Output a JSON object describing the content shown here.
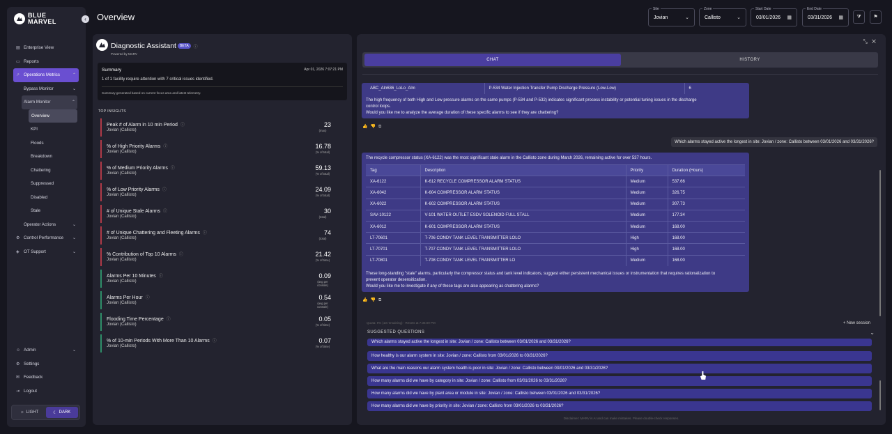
{
  "brand": {
    "name": "BLUE MARVEL"
  },
  "page": {
    "title": "Overview"
  },
  "nav": {
    "enterprise": "Enterprise View",
    "reports": "Reports",
    "operations": "Operations Metrics",
    "bypass": "Bypass Monitor",
    "alarm": "Alarm Monitor",
    "alarm_items": [
      "Overview",
      "KPI",
      "Floods",
      "Breakdown",
      "Chattering",
      "Suppressed",
      "Disabled",
      "Stale"
    ],
    "operator": "Operator Actions",
    "control": "Control Performance",
    "ot": "OT Support",
    "admin": "Admin",
    "settings": "Settings",
    "feedback": "Feedback",
    "logout": "Logout",
    "light": "LIGHT",
    "dark": "DARK"
  },
  "filters": {
    "site": {
      "label": "Site",
      "value": "Jovian"
    },
    "zone": {
      "label": "Zone",
      "value": "Callisto"
    },
    "start": {
      "label": "Start Date",
      "value": "03/01/2026"
    },
    "end": {
      "label": "End Date",
      "value": "03/31/2026"
    }
  },
  "assistant": {
    "title": "Diagnostic Assistant",
    "badge": "BETA",
    "powered": "Powered by MARV",
    "summary_title": "Summary",
    "summary_date": "Apr 01, 2026 7:07:21 PM",
    "summary_body": "1 of 1 facility require attention with 7 critical issues identified.",
    "summary_footer": "Summary generated based on current focus area and latest telemetry.",
    "insights_title": "TOP INSIGHTS",
    "insights": [
      {
        "name": "Peak # of Alarm in 10 min Period",
        "sub": "Jovian (Callisto)",
        "value": "23",
        "unit": "(max)",
        "status": "red"
      },
      {
        "name": "% of High Priority Alarms",
        "sub": "Jovian (Callisto)",
        "value": "16.78",
        "unit": "(% of total)",
        "status": "red"
      },
      {
        "name": "% of Medium Priority Alarms",
        "sub": "Jovian (Callisto)",
        "value": "59.13",
        "unit": "(% of total)",
        "status": "red"
      },
      {
        "name": "% of Low Priority Alarms",
        "sub": "Jovian (Callisto)",
        "value": "24.09",
        "unit": "(% of total)",
        "status": "red"
      },
      {
        "name": "# of Unique Stale Alarms",
        "sub": "Jovian (Callisto)",
        "value": "30",
        "unit": "(total)",
        "status": "red"
      },
      {
        "name": "# of Unique Chattering and Fleeting Alarms",
        "sub": "Jovian (Callisto)",
        "value": "74",
        "unit": "(total)",
        "status": "red"
      },
      {
        "name": "% Contribution of Top 10 Alarms",
        "sub": "Jovian (Callisto)",
        "value": "21.42",
        "unit": "(% of time)",
        "status": "red"
      },
      {
        "name": "Alarms Per 10 Minutes",
        "sub": "Jovian (Callisto)",
        "value": "0.09",
        "unit": "(avg per console)",
        "status": "green"
      },
      {
        "name": "Alarms Per Hour",
        "sub": "Jovian (Callisto)",
        "value": "0.54",
        "unit": "(avg per console)",
        "status": "green"
      },
      {
        "name": "Flooding Time Percentage",
        "sub": "Jovian (Callisto)",
        "value": "0.05",
        "unit": "(% of time)",
        "status": "green"
      },
      {
        "name": "% of 10-min Periods With More Than 10 Alarms",
        "sub": "Jovian (Callisto)",
        "value": "0.07",
        "unit": "(% of time)",
        "status": "green"
      }
    ]
  },
  "chat": {
    "tab_chat": "CHAT",
    "tab_history": "HISTORY",
    "prev_row": [
      "ABC_Aln636_LoLo_Alm",
      "P-534 Water Injection Transfer Pump Discharge Pressure (Low-Low)",
      "6"
    ],
    "prev_text1": "The high frequency of both High and Low pressure alarms on the same pumps (P-534 and P-532) indicates significant process instability or potential tuning issues in the discharge control loops.",
    "prev_text2": "Would you like me to analyze the average duration of these specific alarms to see if they are chattering?",
    "user_msg": "Which alarms stayed active the longest in site: Jovian / zone: Callisto between 03/01/2026 and 03/31/2026?",
    "answer_intro": "The recycle compressor status (XA-6122) was the most significant stale alarm in the Callisto zone during March 2026, remaining active for over 537 hours.",
    "table_headers": [
      "Tag",
      "Description",
      "Priority",
      "Duration (Hours)"
    ],
    "table_rows": [
      [
        "XA-6122",
        "K-612 RECYCLE COMPRESSOR ALARM STATUS",
        "Medium",
        "537.66"
      ],
      [
        "XA-6042",
        "K-604 COMPRESSOR ALARM STATUS",
        "Medium",
        "326.75"
      ],
      [
        "XA-6022",
        "K-602 COMPRESSOR ALARM STATUS",
        "Medium",
        "307.73"
      ],
      [
        "SAV-10122",
        "V-101 WATER OUTLET ESDV SOLENOID FULL STALL",
        "Medium",
        "177.34"
      ],
      [
        "XA-6012",
        "K-601 COMPRESSOR ALARM STATUS",
        "Medium",
        "168.00"
      ],
      [
        "LT-70601",
        "T-706 CONDY TANK LEVEL TRANSMITTER LOLO",
        "High",
        "168.00"
      ],
      [
        "LT-70701",
        "T-707 CONDY TANK LEVEL TRANSMITTER LOLO",
        "High",
        "168.00"
      ],
      [
        "LT-70801",
        "T-708 CONDY TANK LEVEL TRANSMITTER LO",
        "Medium",
        "168.00"
      ]
    ],
    "answer_text1": "These long-standing \"stale\" alarms, particularly the compressor status and tank level indicators, suggest either persistent mechanical issues or instrumentation that requires rationalization to prevent operator desensitization.",
    "answer_text2": "Would you like me to investigate if any of these tags are also appearing as chattering alarms?",
    "quota": "Quota: 9% (10 remaining) · Resets at 7:36:09 PM",
    "new_session": "+ New session",
    "suggested_title": "SUGGESTED QUESTIONS",
    "suggested": [
      "Which alarms stayed active the longest in site: Jovian / zone: Callisto between 03/01/2026 and 03/31/2026?",
      "How healthy is our alarm system in site: Jovian / zone: Callisto from 03/01/2026 to 03/31/2026?",
      "What are the main reasons our alarm system health is poor in site: Jovian / zone: Callisto between 03/01/2026 and 03/31/2026?",
      "How many alarms did we have by category in site: Jovian / zone: Callisto from 03/01/2026 to 03/31/2026?",
      "How many alarms did we have by plant area or module in site: Jovian / zone: Callisto between 03/01/2026 and 03/31/2026?",
      "How many alarms did we have by priority in site: Jovian / zone: Callisto from 03/01/2026 to 03/31/2026?"
    ],
    "disclaimer": "Disclaimer: MARV is AI and can make mistakes. Please double-check responses."
  }
}
